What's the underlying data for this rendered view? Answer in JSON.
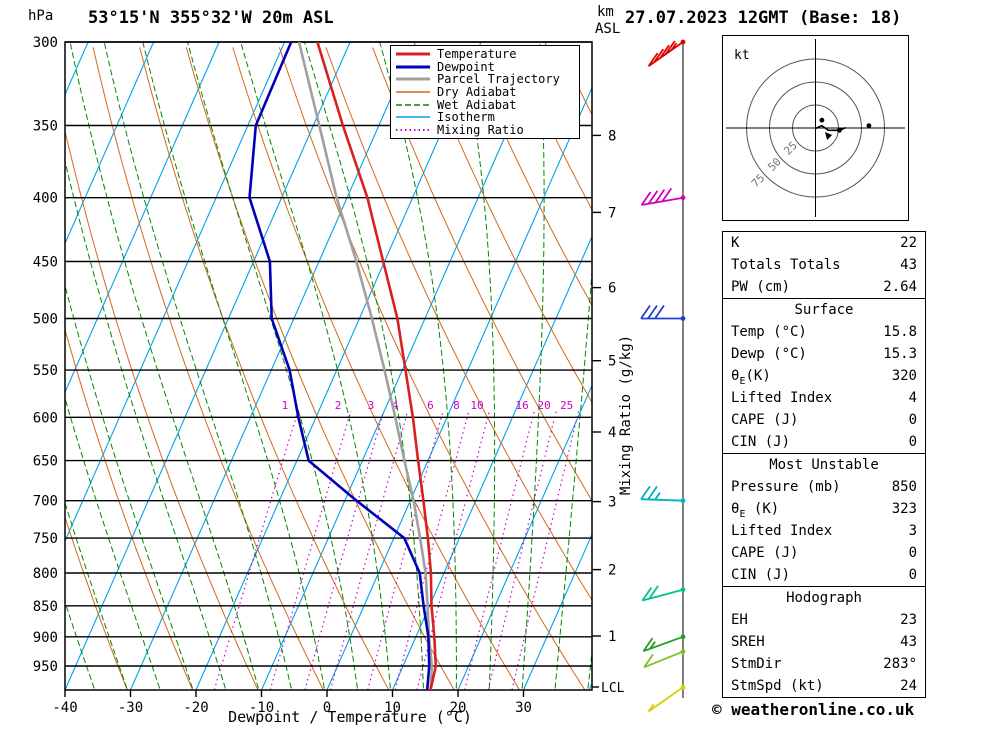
{
  "header": {
    "station_title": "53°15'N 355°32'W 20m ASL",
    "datetime_title": "27.07.2023 12GMT (Base: 18)"
  },
  "axes": {
    "pressure_unit": "hPa",
    "pressure_ticks": [
      300,
      350,
      400,
      450,
      500,
      550,
      600,
      650,
      700,
      750,
      800,
      850,
      900,
      950
    ],
    "temp_axis_label": "Dewpoint / Temperature (°C)",
    "temp_ticks": [
      -40,
      -30,
      -20,
      -10,
      0,
      10,
      20,
      30
    ],
    "km_unit_line1": "km",
    "km_unit_line2": "ASL",
    "km_ticks": [
      8,
      7,
      6,
      5,
      4,
      3,
      2,
      1
    ],
    "lcl_label": "LCL",
    "mixing_axis_label": "Mixing Ratio (g/kg)"
  },
  "legend": {
    "items": [
      {
        "label": "Temperature",
        "color": "#d82020",
        "width": 3,
        "dash": ""
      },
      {
        "label": "Dewpoint",
        "color": "#0000b8",
        "width": 3,
        "dash": ""
      },
      {
        "label": "Parcel Trajectory",
        "color": "#a0a0a0",
        "width": 3,
        "dash": ""
      },
      {
        "label": "Dry Adiabat",
        "color": "#d2691e",
        "width": 1.5,
        "dash": ""
      },
      {
        "label": "Wet Adiabat",
        "color": "#008800",
        "width": 1.5,
        "dash": "6 3"
      },
      {
        "label": "Isotherm",
        "color": "#00a2e8",
        "width": 1.5,
        "dash": ""
      },
      {
        "label": "Mixing Ratio",
        "color": "#cc00cc",
        "width": 2,
        "dash": "1.5 3"
      }
    ]
  },
  "chart_data": {
    "type": "skewt_log_p_sounding",
    "pressure_axis_range_hpa": [
      300,
      993
    ],
    "temp_axis_range_c": [
      -40,
      40
    ],
    "pressure_hpa": [
      993,
      950,
      900,
      850,
      800,
      750,
      700,
      650,
      600,
      550,
      500,
      450,
      400,
      350,
      300
    ],
    "temperature_c": [
      15.8,
      15.0,
      12.8,
      10.3,
      8.0,
      5.2,
      2.0,
      -1.5,
      -5.2,
      -9.5,
      -14.2,
      -20.2,
      -26.9,
      -35.5,
      -45.0
    ],
    "dewpoint_c": [
      15.3,
      14.0,
      11.9,
      9.1,
      6.3,
      1.6,
      -8.2,
      -18.2,
      -22.7,
      -27.2,
      -33.4,
      -37.5,
      -44.9,
      -48.8,
      -49.0
    ],
    "parcel_c": [
      15.8,
      14.4,
      12.0,
      9.7,
      7.2,
      4.0,
      0.5,
      -3.6,
      -7.9,
      -12.7,
      -18.1,
      -24.3,
      -31.6,
      -39.1,
      -47.8
    ],
    "mixing_ratio_lines_gkg": [
      1,
      2,
      3,
      4,
      6,
      8,
      10,
      16,
      20,
      25
    ],
    "wind_barbs": [
      {
        "p": 300,
        "color": "#e00000",
        "speed_kt": 45,
        "dir_deg": 235
      },
      {
        "p": 400,
        "color": "#d000c0",
        "speed_kt": 40,
        "dir_deg": 260
      },
      {
        "p": 500,
        "color": "#2040d0",
        "speed_kt": 30,
        "dir_deg": 270
      },
      {
        "p": 700,
        "color": "#00b0c0",
        "speed_kt": 25,
        "dir_deg": 272
      },
      {
        "p": 825,
        "color": "#00c090",
        "speed_kt": 20,
        "dir_deg": 255
      },
      {
        "p": 900,
        "color": "#20a020",
        "speed_kt": 15,
        "dir_deg": 250
      },
      {
        "p": 925,
        "color": "#80c020",
        "speed_kt": 10,
        "dir_deg": 248
      },
      {
        "p": 988,
        "color": "#d0d000",
        "speed_kt": 5,
        "dir_deg": 235
      }
    ]
  },
  "hodograph": {
    "unit_label": "kt",
    "ring_labels": [
      "25",
      "50",
      "75"
    ],
    "ring_radii_kt": [
      25,
      50,
      75
    ],
    "trace_kt": [
      [
        0,
        0
      ],
      [
        7,
        3
      ],
      [
        14,
        -2
      ],
      [
        26,
        -2
      ],
      [
        33,
        1
      ]
    ],
    "dots_kt": [
      [
        7,
        9
      ],
      [
        26,
        -2
      ],
      [
        58,
        3
      ]
    ],
    "storm_motion_kt": [
      18,
      -7
    ]
  },
  "tables": [
    {
      "header": "",
      "rows": [
        [
          "K",
          "22"
        ],
        [
          "Totals Totals",
          "43"
        ],
        [
          "PW (cm)",
          "2.64"
        ]
      ]
    },
    {
      "header": "Surface",
      "rows": [
        [
          "Temp (°C)",
          "15.8"
        ],
        [
          "Dewp (°C)",
          "15.3"
        ],
        [
          "θE(K)",
          "320"
        ],
        [
          "Lifted Index",
          "4"
        ],
        [
          "CAPE (J)",
          "0"
        ],
        [
          "CIN (J)",
          "0"
        ]
      ]
    },
    {
      "header": "Most Unstable",
      "rows": [
        [
          "Pressure (mb)",
          "850"
        ],
        [
          "θE (K)",
          "323"
        ],
        [
          "Lifted Index",
          "3"
        ],
        [
          "CAPE (J)",
          "0"
        ],
        [
          "CIN (J)",
          "0"
        ]
      ]
    },
    {
      "header": "Hodograph",
      "rows": [
        [
          "EH",
          "23"
        ],
        [
          "SREH",
          "43"
        ],
        [
          "StmDir",
          "283°"
        ],
        [
          "StmSpd (kt)",
          "24"
        ]
      ]
    }
  ],
  "footer": {
    "copyright": "© weatheronline.co.uk"
  },
  "colors": {
    "temperature": "#d82020",
    "dewpoint": "#0000b8",
    "parcel": "#a0a0a0",
    "dry_adiabat": "#d2691e",
    "wet_adiabat": "#008800",
    "isotherm": "#00a2e8",
    "mixing_ratio": "#cc00cc",
    "grid": "#000000"
  }
}
